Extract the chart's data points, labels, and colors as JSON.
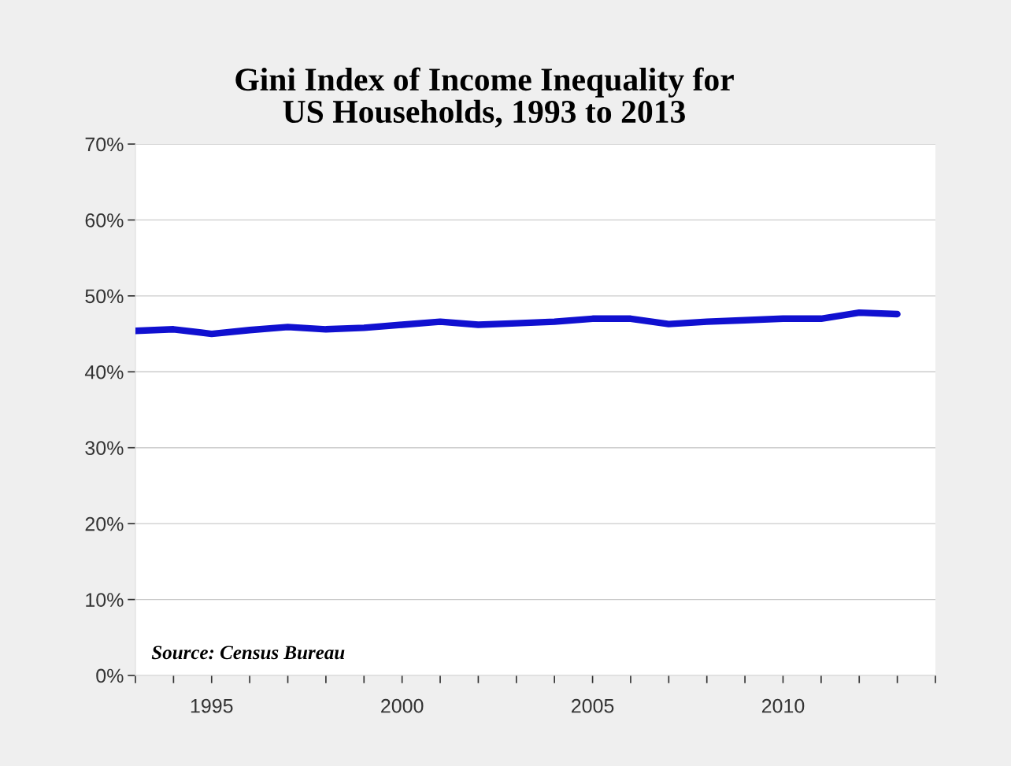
{
  "chart_data": {
    "type": "line",
    "title": "Gini Index of Income Inequality for\nUS Households, 1993 to 2013",
    "x": [
      1993,
      1994,
      1995,
      1996,
      1997,
      1998,
      1999,
      2000,
      2001,
      2002,
      2003,
      2004,
      2005,
      2006,
      2007,
      2008,
      2009,
      2010,
      2011,
      2012,
      2013
    ],
    "series": [
      {
        "color": "#1010d0",
        "values": [
          45.4,
          45.6,
          45.0,
          45.5,
          45.9,
          45.6,
          45.8,
          46.2,
          46.6,
          46.2,
          46.4,
          46.6,
          47.0,
          47.0,
          46.3,
          46.6,
          46.8,
          47.0,
          47.0,
          47.8,
          47.6
        ]
      }
    ],
    "xlim": [
      1993,
      2014
    ],
    "xticks": [
      {
        "value": 1993,
        "label": null
      },
      {
        "value": 1994,
        "label": null
      },
      1995,
      {
        "value": 1996,
        "label": null
      },
      {
        "value": 1997,
        "label": null
      },
      {
        "value": 1998,
        "label": null
      },
      {
        "value": 1999,
        "label": null
      },
      2000,
      {
        "value": 2001,
        "label": null
      },
      {
        "value": 2002,
        "label": null
      },
      {
        "value": 2003,
        "label": null
      },
      {
        "value": 2004,
        "label": null
      },
      2005,
      {
        "value": 2006,
        "label": null
      },
      {
        "value": 2007,
        "label": null
      },
      {
        "value": 2008,
        "label": null
      },
      {
        "value": 2009,
        "label": null
      },
      2010,
      {
        "value": 2011,
        "label": null
      },
      {
        "value": 2012,
        "label": null
      },
      {
        "value": 2013,
        "label": null
      },
      {
        "value": 2014,
        "label": null
      }
    ],
    "ylim": [
      0,
      70
    ],
    "yticks": [
      {
        "value": 0,
        "label": "0%"
      },
      {
        "value": 10,
        "label": "10%"
      },
      {
        "value": 20,
        "label": "20%"
      },
      {
        "value": 30,
        "label": "30%"
      },
      {
        "value": 40,
        "label": "40%"
      },
      {
        "value": 50,
        "label": "50%"
      },
      {
        "value": 60,
        "label": "60%"
      },
      {
        "value": 70,
        "label": "70%"
      }
    ],
    "grid": "y",
    "marker": "none",
    "line_style": "solid",
    "annotations": [
      "Source: Census Bureau"
    ]
  }
}
